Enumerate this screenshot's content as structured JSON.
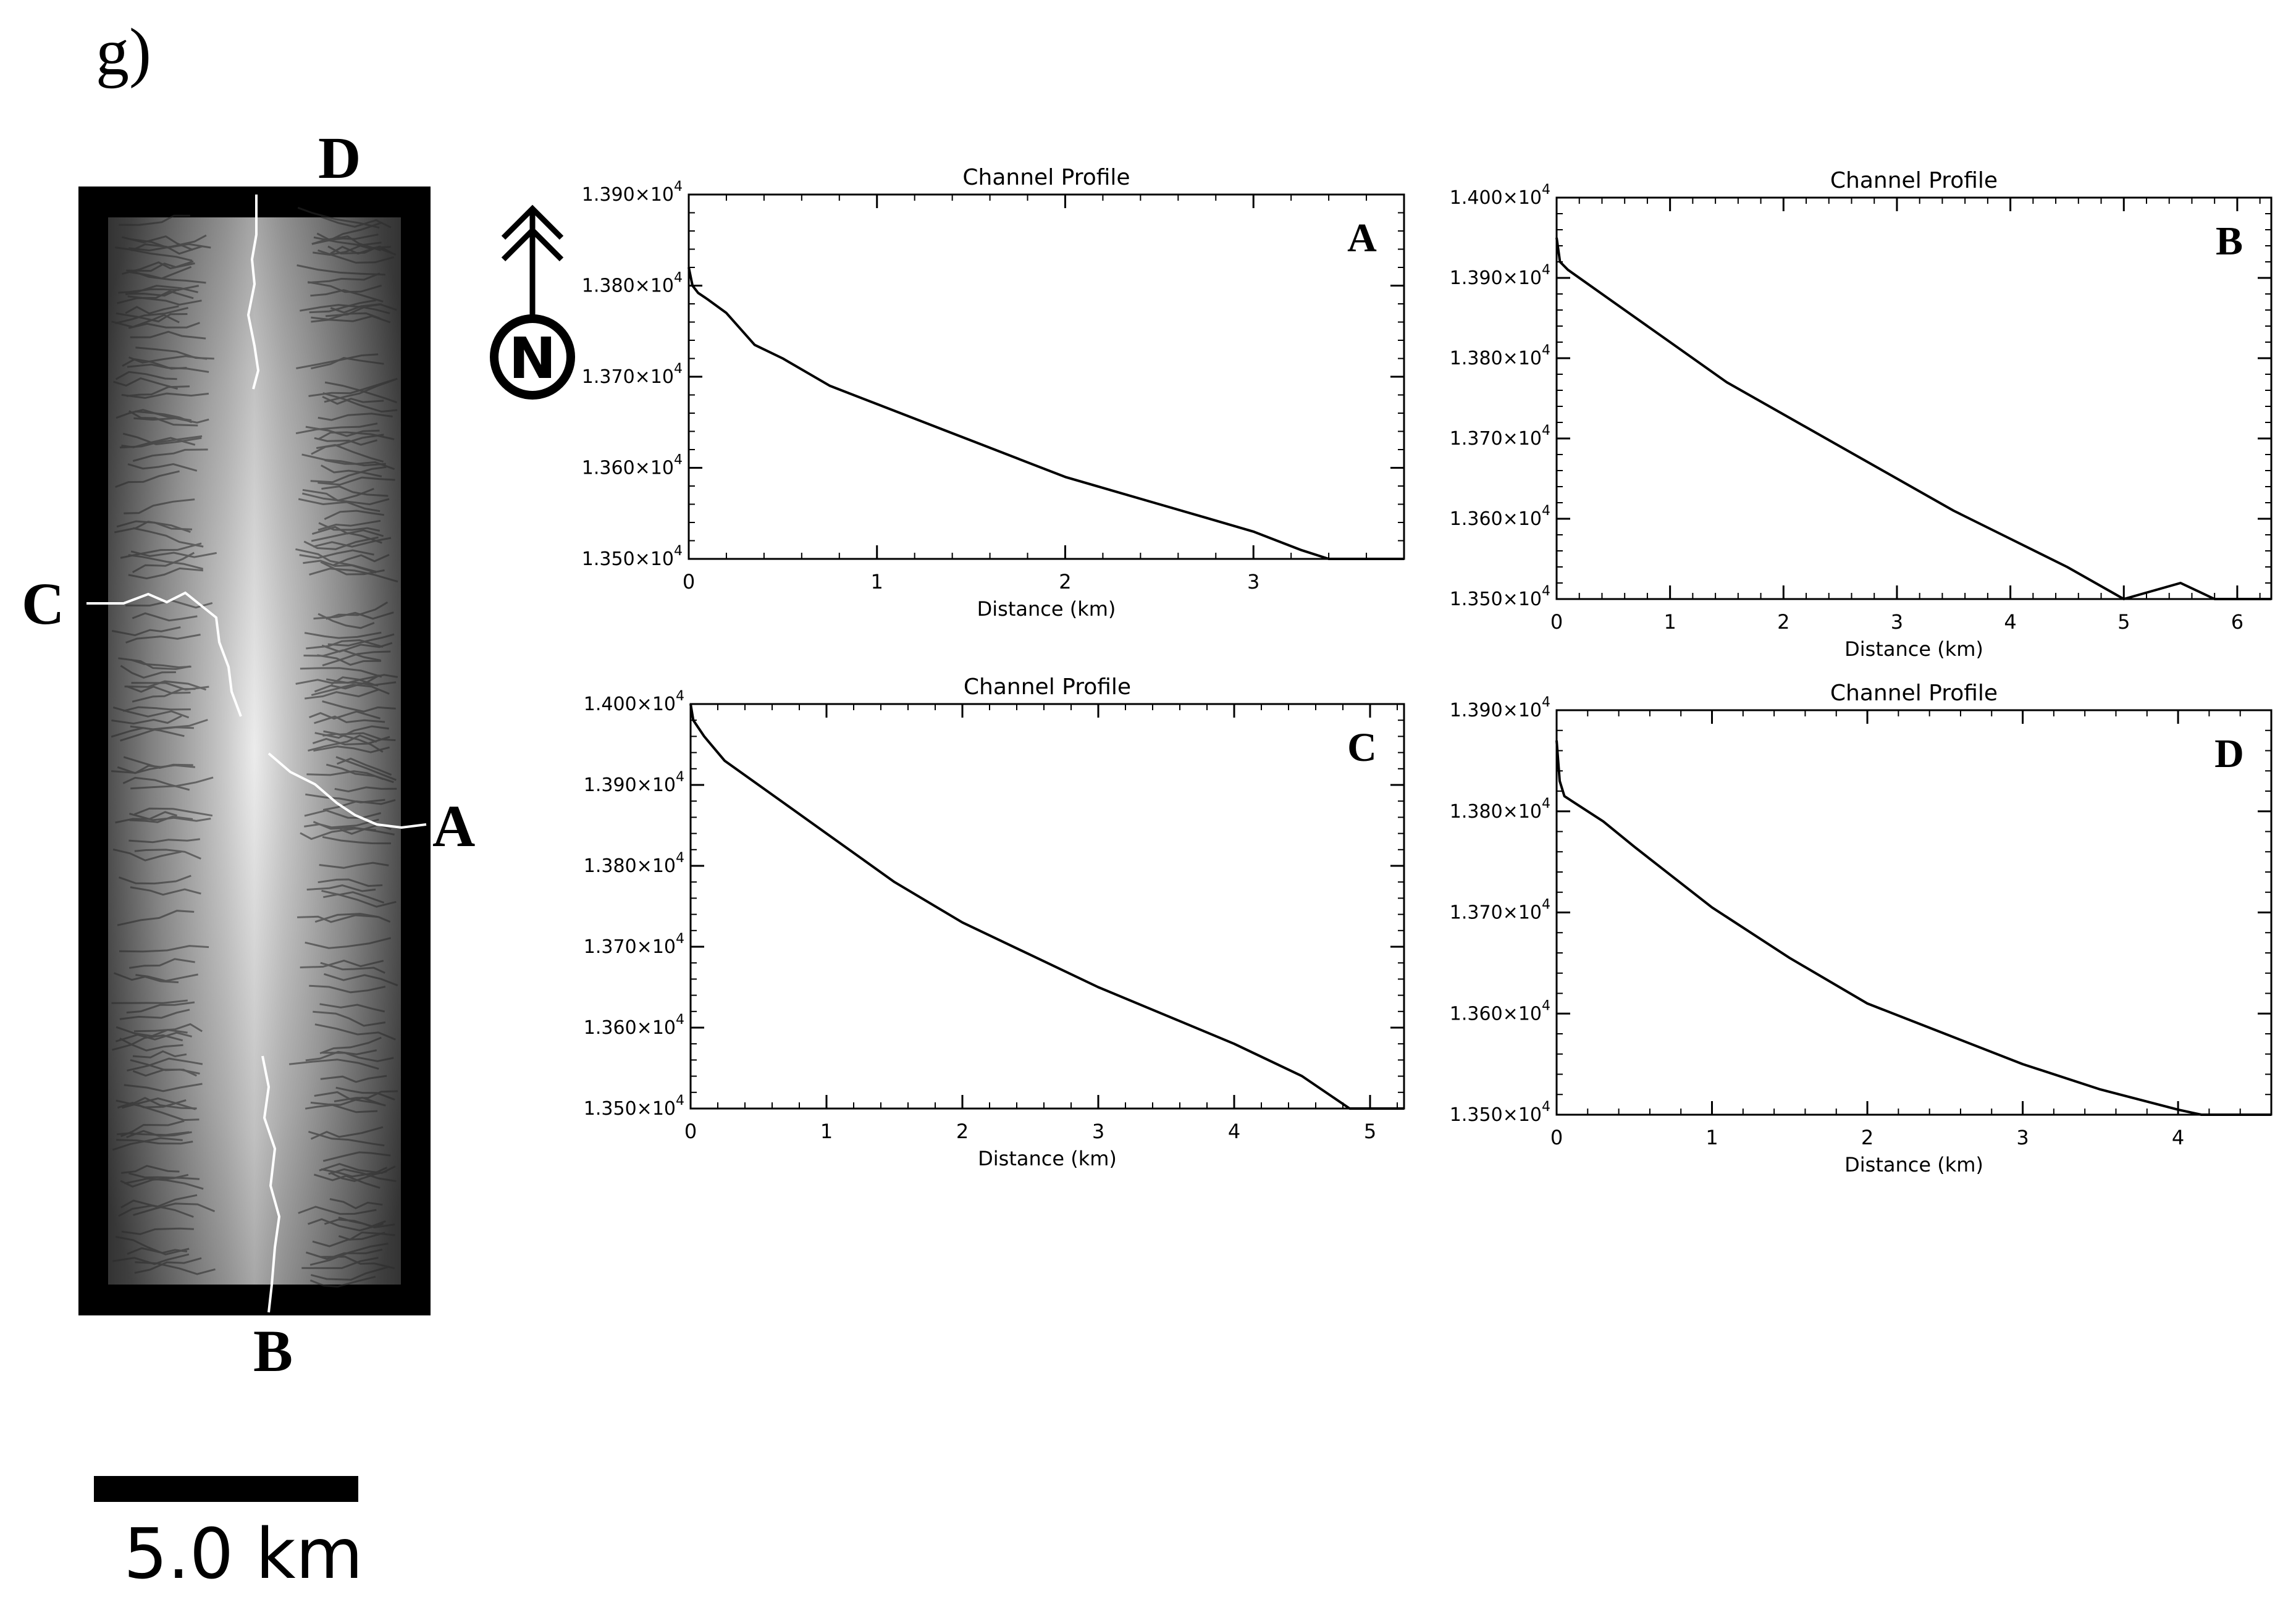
{
  "figure": {
    "panel_label": "g)",
    "scale_bar_label": "5.0 km",
    "north_arrow_label": "N",
    "map_outlet_labels": {
      "north": "D",
      "west": "C",
      "east": "A",
      "south": "B"
    }
  },
  "chart_data": [
    {
      "type": "line",
      "title": "Channel Profile",
      "xlabel": "Distance (km)",
      "ylabel": "",
      "panel_letter": "A",
      "xlim": [
        0,
        3.8
      ],
      "ylim": [
        13500,
        13900
      ],
      "x_ticks": [
        0,
        1,
        2,
        3
      ],
      "y_ticks": [
        {
          "value": 13500,
          "mantissa": "1.350",
          "exp": "4"
        },
        {
          "value": 13600,
          "mantissa": "1.360",
          "exp": "4"
        },
        {
          "value": 13700,
          "mantissa": "1.370",
          "exp": "4"
        },
        {
          "value": 13800,
          "mantissa": "1.380",
          "exp": "4"
        },
        {
          "value": 13900,
          "mantissa": "1.390",
          "exp": "4"
        }
      ],
      "series": [
        {
          "x": [
            0,
            0.02,
            0.05,
            0.1,
            0.2,
            0.35,
            0.5,
            0.75,
            1.0,
            1.25,
            1.5,
            1.75,
            2.0,
            2.25,
            2.5,
            2.75,
            3.0,
            3.25,
            3.4,
            3.6,
            3.8
          ],
          "y": [
            13820,
            13800,
            13792,
            13785,
            13770,
            13735,
            13720,
            13690,
            13670,
            13650,
            13630,
            13610,
            13590,
            13575,
            13560,
            13545,
            13530,
            13510,
            13500,
            13500,
            13500
          ]
        }
      ]
    },
    {
      "type": "line",
      "title": "Channel Profile",
      "xlabel": "Distance (km)",
      "ylabel": "",
      "panel_letter": "B",
      "xlim": [
        0,
        6.3
      ],
      "ylim": [
        13500,
        14000
      ],
      "x_ticks": [
        0,
        1,
        2,
        3,
        4,
        5,
        6
      ],
      "y_ticks": [
        {
          "value": 13500,
          "mantissa": "1.350",
          "exp": "4"
        },
        {
          "value": 13600,
          "mantissa": "1.360",
          "exp": "4"
        },
        {
          "value": 13700,
          "mantissa": "1.370",
          "exp": "4"
        },
        {
          "value": 13800,
          "mantissa": "1.380",
          "exp": "4"
        },
        {
          "value": 13900,
          "mantissa": "1.390",
          "exp": "4"
        },
        {
          "value": 14000,
          "mantissa": "1.400",
          "exp": "4"
        }
      ],
      "series": [
        {
          "x": [
            0,
            0.03,
            0.1,
            0.5,
            1.0,
            1.5,
            2.0,
            2.5,
            3.0,
            3.5,
            4.0,
            4.5,
            5.0,
            5.5,
            5.8,
            6.0,
            6.3
          ],
          "y": [
            13950,
            13920,
            13910,
            13870,
            13820,
            13770,
            13730,
            13690,
            13650,
            13610,
            13575,
            13540,
            13500,
            13520,
            13500,
            13500,
            13500
          ]
        }
      ]
    },
    {
      "type": "line",
      "title": "Channel Profile",
      "xlabel": "Distance (km)",
      "ylabel": "",
      "panel_letter": "C",
      "xlim": [
        0,
        5.25
      ],
      "ylim": [
        13500,
        14000
      ],
      "x_ticks": [
        0,
        1,
        2,
        3,
        4,
        5
      ],
      "y_ticks": [
        {
          "value": 13500,
          "mantissa": "1.350",
          "exp": "4"
        },
        {
          "value": 13600,
          "mantissa": "1.360",
          "exp": "4"
        },
        {
          "value": 13700,
          "mantissa": "1.370",
          "exp": "4"
        },
        {
          "value": 13800,
          "mantissa": "1.380",
          "exp": "4"
        },
        {
          "value": 13900,
          "mantissa": "1.390",
          "exp": "4"
        },
        {
          "value": 14000,
          "mantissa": "1.400",
          "exp": "4"
        }
      ],
      "series": [
        {
          "x": [
            0,
            0.02,
            0.1,
            0.25,
            0.5,
            0.75,
            1.0,
            1.5,
            2.0,
            2.5,
            3.0,
            3.5,
            4.0,
            4.5,
            4.85,
            5.25
          ],
          "y": [
            14000,
            13980,
            13960,
            13930,
            13900,
            13870,
            13840,
            13780,
            13730,
            13690,
            13650,
            13615,
            13580,
            13540,
            13500,
            13500
          ]
        }
      ]
    },
    {
      "type": "line",
      "title": "Channel Profile",
      "xlabel": "Distance (km)",
      "ylabel": "",
      "panel_letter": "D",
      "xlim": [
        0,
        4.6
      ],
      "ylim": [
        13500,
        13900
      ],
      "x_ticks": [
        0,
        1,
        2,
        3,
        4
      ],
      "y_ticks": [
        {
          "value": 13500,
          "mantissa": "1.350",
          "exp": "4"
        },
        {
          "value": 13600,
          "mantissa": "1.360",
          "exp": "4"
        },
        {
          "value": 13700,
          "mantissa": "1.370",
          "exp": "4"
        },
        {
          "value": 13800,
          "mantissa": "1.380",
          "exp": "4"
        },
        {
          "value": 13900,
          "mantissa": "1.390",
          "exp": "4"
        }
      ],
      "series": [
        {
          "x": [
            0,
            0.02,
            0.05,
            0.1,
            0.3,
            0.5,
            0.75,
            1.0,
            1.5,
            2.0,
            2.5,
            3.0,
            3.5,
            4.0,
            4.15,
            4.6
          ],
          "y": [
            13870,
            13830,
            13815,
            13810,
            13790,
            13765,
            13735,
            13705,
            13655,
            13610,
            13580,
            13550,
            13525,
            13505,
            13500,
            13500
          ]
        }
      ]
    }
  ]
}
